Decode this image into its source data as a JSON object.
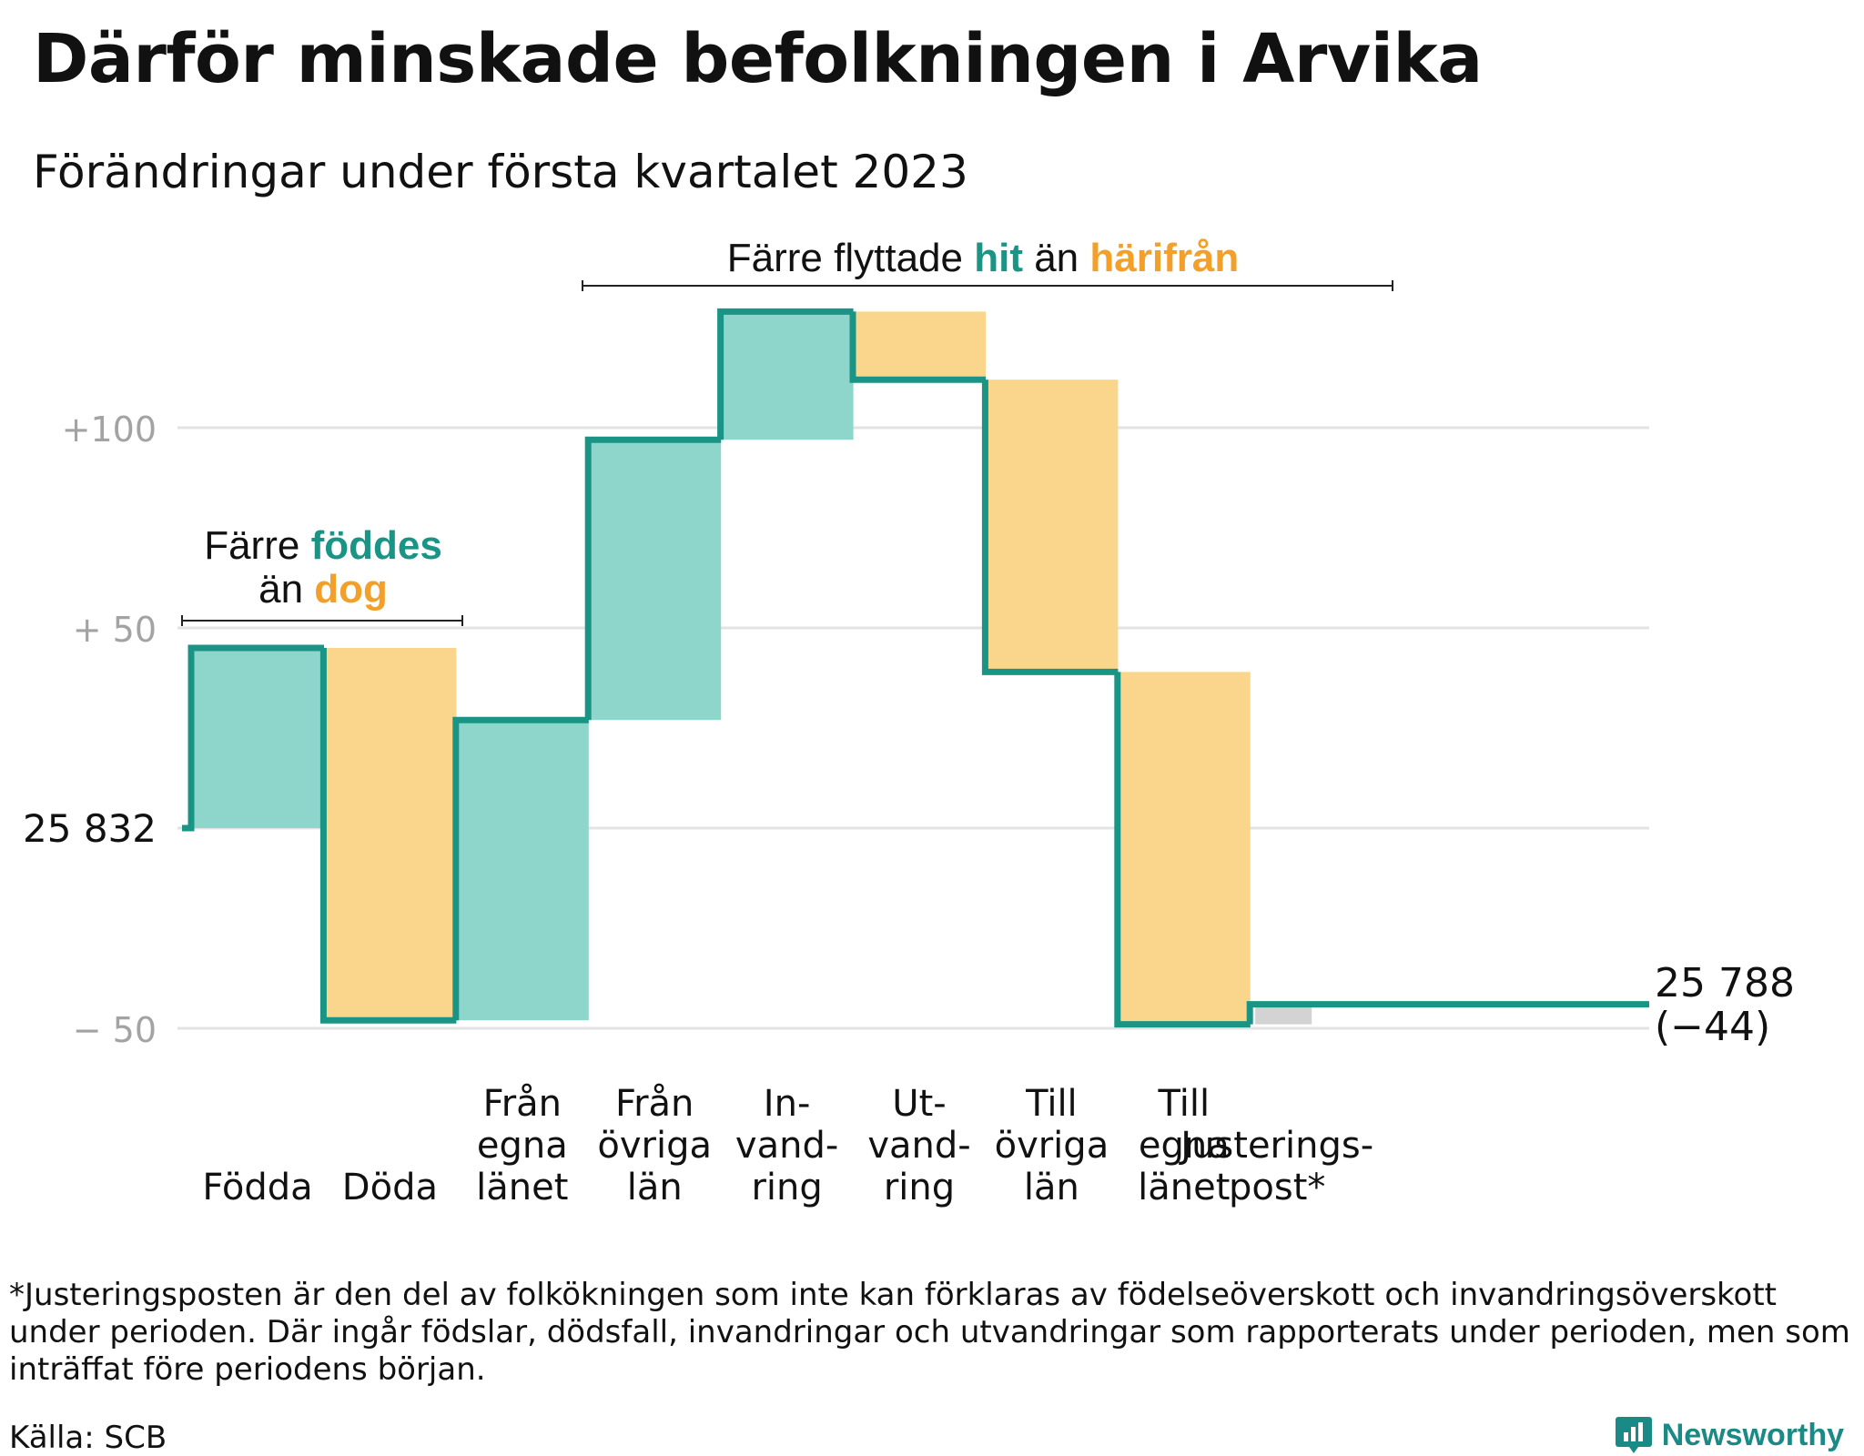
{
  "title": "Därför minskade befolkningen i Arvika",
  "subtitle": "Förändringar under första kvartalet 2023",
  "annotations": {
    "birth_group": {
      "prefix": "Färre ",
      "highlight1": "föddes",
      "line2_prefix": "än ",
      "highlight2": "dog"
    },
    "migration_group": {
      "prefix": "Färre flyttade ",
      "highlight1": "hit",
      "middle": " än ",
      "highlight2": "härifrån"
    }
  },
  "start_label": "25 832",
  "end_label": {
    "value": "25 788",
    "change": "(−44)"
  },
  "footnote": "*Justeringsposten är den del av folkökningen som inte kan förklaras av födelseöverskott och invandringsöverskott under perioden. Där ingår födslar, dödsfall, invandringar och utvandringar som rapporterats under perioden, men som inträffat före periodens början.",
  "source": "Källa: SCB",
  "brand": "Newsworthy",
  "colors": {
    "increase": "#8ed5cc",
    "decrease": "#fad68c",
    "line": "#1a9484",
    "adjustment": "#d3d3d3",
    "grid": "#e3e3e6",
    "tick_text": "#a3a3a3",
    "accent_teal": "#1a9484",
    "accent_orange": "#f3a02a"
  },
  "chart_data": {
    "type": "waterfall",
    "start_value": 25832,
    "end_value": 25788,
    "net_change": -44,
    "ylim": [
      -50,
      130
    ],
    "yticks": [
      {
        "value": 100,
        "label": "+100"
      },
      {
        "value": 50,
        "label": "+ 50"
      },
      {
        "value": 0,
        "label": "25 832"
      },
      {
        "value": -50,
        "label": "− 50"
      }
    ],
    "steps": [
      {
        "label_lines": [
          "Födda"
        ],
        "delta": 45,
        "kind": "increase"
      },
      {
        "label_lines": [
          "Döda"
        ],
        "delta": -93,
        "kind": "decrease"
      },
      {
        "label_lines": [
          "Från",
          "egna",
          "länet"
        ],
        "delta": 75,
        "kind": "increase"
      },
      {
        "label_lines": [
          "Från",
          "övriga",
          "län"
        ],
        "delta": 70,
        "kind": "increase"
      },
      {
        "label_lines": [
          "In-",
          "vand-",
          "ring"
        ],
        "delta": 32,
        "kind": "increase"
      },
      {
        "label_lines": [
          "Ut-",
          "vand-",
          "ring"
        ],
        "delta": -17,
        "kind": "decrease"
      },
      {
        "label_lines": [
          "Till",
          "övriga",
          "län"
        ],
        "delta": -73,
        "kind": "decrease"
      },
      {
        "label_lines": [
          "Till",
          "egna",
          "länet"
        ],
        "delta": -88,
        "kind": "decrease"
      },
      {
        "label_lines": [
          "Justerings-",
          "post*"
        ],
        "delta": 5,
        "kind": "adjustment"
      }
    ]
  }
}
